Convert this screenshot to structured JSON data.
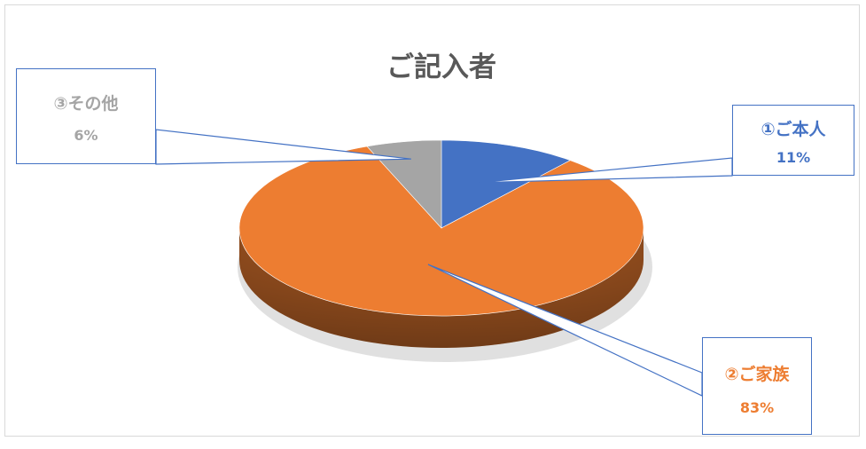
{
  "chart_data": {
    "type": "pie",
    "title": "ご記入者",
    "categories": [
      "①ご本人",
      "②ご家族",
      "③その他"
    ],
    "values": [
      11,
      83,
      6
    ],
    "value_labels": [
      "11%",
      "83%",
      "6%"
    ],
    "colors": [
      "#4472c4",
      "#ed7d31",
      "#a5a5a5"
    ],
    "label_colors": [
      "#4472c4",
      "#ed7d31",
      "#a5a5a5"
    ],
    "legend": "none",
    "style": "3d"
  }
}
